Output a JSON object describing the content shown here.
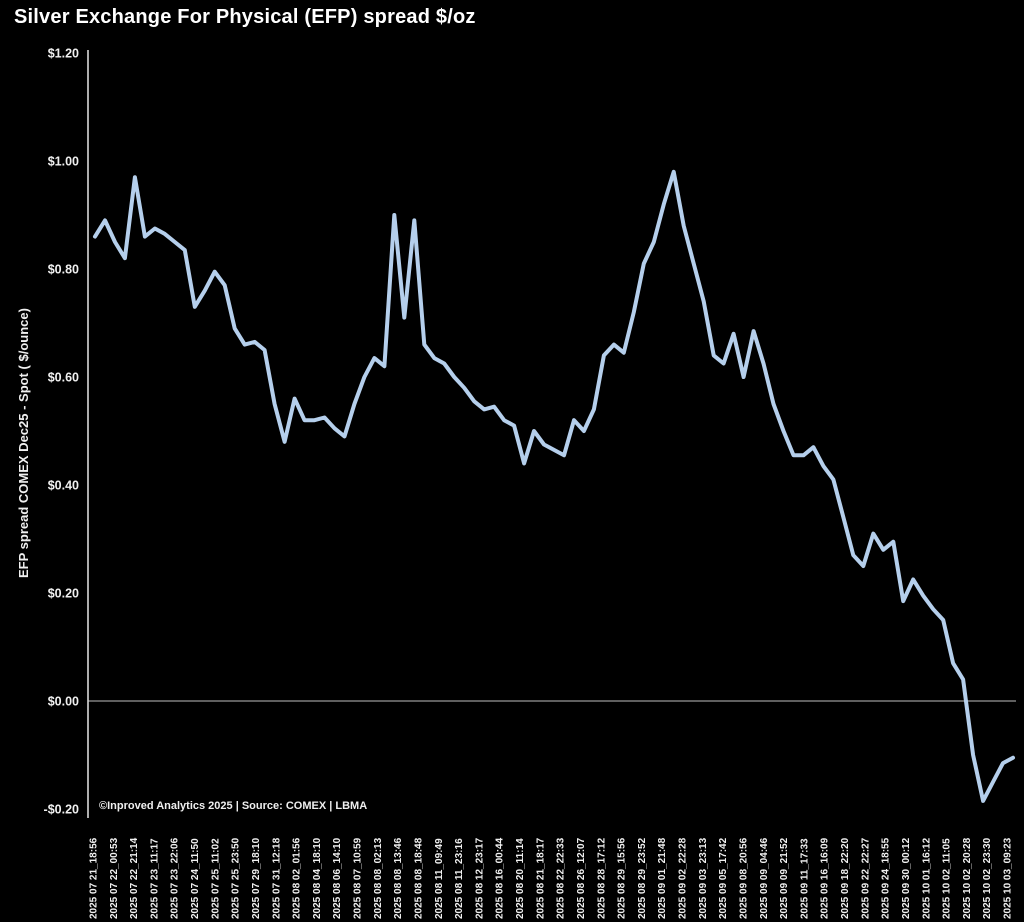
{
  "title": "Silver Exchange For Physical (EFP) spread $/oz",
  "attribution": "©Inproved Analytics 2025 | Source: COMEX | LBMA",
  "colors": {
    "background": "#000000",
    "line": "#b5cfec",
    "axis": "#d9d9d9",
    "zero_line": "#7f7f7f",
    "text": "#f0f0f0"
  },
  "chart_data": {
    "type": "line",
    "title": "Silver Exchange For Physical (EFP) spread $/oz",
    "xlabel": "",
    "ylabel": "EFP spread COMEX Dec25 - Spot ( $/ounce)",
    "ylim": [
      -0.2,
      1.2
    ],
    "grid": "horizontal zero-line only",
    "legend_position": "none",
    "y_ticks": [
      1.2,
      1.0,
      0.8,
      0.6,
      0.4,
      0.2,
      0.0,
      -0.2
    ],
    "y_tick_labels": [
      "$1.20",
      "$1.00",
      "$0.80",
      "$0.60",
      "$0.40",
      "$0.20",
      "$0.00",
      "-$0.20"
    ],
    "x_tick_labels": [
      "2025 07 21_18:56",
      "2025 07 22_00:53",
      "2025 07 22_21:14",
      "2025 07 23_11:17",
      "2025 07 23_22:06",
      "2025 07 24_11:50",
      "2025 07 25_11:02",
      "2025 07 25_23:50",
      "2025 07 29_18:10",
      "2025 07 31_12:18",
      "2025 08 02_01:56",
      "2025 08 04_18:10",
      "2025 08 06_14:10",
      "2025 08 07_10:59",
      "2025 08 08_02:13",
      "2025 08 08_13:46",
      "2025 08 08_18:48",
      "2025 08 11_09:49",
      "2025 08 11_23:16",
      "2025 08 12_23:17",
      "2025 08 16_00:44",
      "2025 08 20_11:14",
      "2025 08 21_18:17",
      "2025 08 22_22:33",
      "2025 08 26_12:07",
      "2025 08 28_17:12",
      "2025 08 29_15:56",
      "2025 08 29_23:52",
      "2025 09 01_21:48",
      "2025 09 02_22:28",
      "2025 09 03_23:13",
      "2025 09 05_17:42",
      "2025 09 08_20:56",
      "2025 09 09_04:46",
      "2025 09 09_21:52",
      "2025 09 11_17:33",
      "2025 09 16_16:09",
      "2025 09 18_22:20",
      "2025 09 22_22:27",
      "2025 09 24_18:55",
      "2025 09 30_00:12",
      "2025 10 01_16:12",
      "2025 10 02_11:05",
      "2025 10 02_20:28",
      "2025 10 02_23:30",
      "2025 10 03_09:23"
    ],
    "series": [
      {
        "name": "EFP spread COMEX Dec25 - Spot",
        "color": "#b5cfec",
        "values": [
          0.86,
          0.89,
          0.85,
          0.82,
          0.97,
          0.86,
          0.875,
          0.865,
          0.85,
          0.835,
          0.73,
          0.76,
          0.795,
          0.77,
          0.69,
          0.66,
          0.665,
          0.65,
          0.55,
          0.48,
          0.56,
          0.52,
          0.52,
          0.525,
          0.505,
          0.49,
          0.55,
          0.6,
          0.635,
          0.62,
          0.9,
          0.71,
          0.89,
          0.66,
          0.635,
          0.625,
          0.6,
          0.58,
          0.555,
          0.54,
          0.545,
          0.52,
          0.51,
          0.44,
          0.5,
          0.475,
          0.465,
          0.455,
          0.52,
          0.5,
          0.54,
          0.64,
          0.66,
          0.645,
          0.72,
          0.81,
          0.85,
          0.92,
          0.98,
          0.88,
          0.81,
          0.74,
          0.64,
          0.625,
          0.68,
          0.6,
          0.685,
          0.625,
          0.55,
          0.5,
          0.455,
          0.455,
          0.47,
          0.435,
          0.41,
          0.34,
          0.27,
          0.25,
          0.31,
          0.28,
          0.295,
          0.185,
          0.225,
          0.195,
          0.17,
          0.15,
          0.07,
          0.04,
          -0.1,
          -0.185,
          -0.15,
          -0.115,
          -0.105
        ]
      }
    ]
  }
}
